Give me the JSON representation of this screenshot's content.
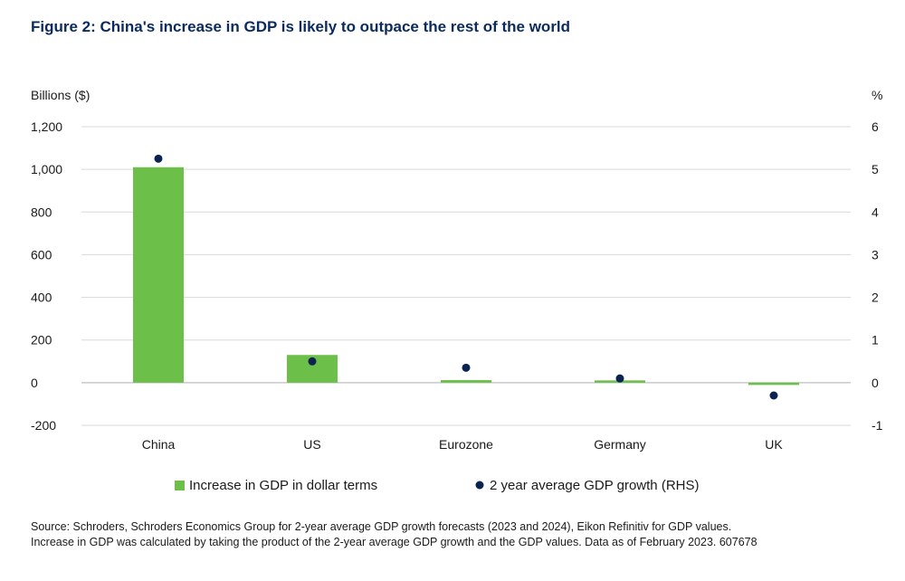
{
  "title": "Figure 2: China's increase in GDP is likely to outpace the rest of the world",
  "source": {
    "line1": "Source: Schroders, Schroders Economics Group for 2-year average GDP growth forecasts (2023 and 2024), Eikon Refinitiv for GDP values.",
    "line2": "Increase in GDP was calculated by taking the product of the 2-year average GDP growth and the GDP values. Data as of February 2023. 607678"
  },
  "colors": {
    "bar": "#6cc04a",
    "dot": "#0b2350",
    "grid": "#d9d9d9",
    "zero": "#bfbfbf"
  },
  "chart_data": {
    "type": "bar",
    "categories": [
      "China",
      "US",
      "Eurozone",
      "Germany",
      "UK"
    ],
    "series": [
      {
        "name": "Increase in GDP in dollar terms",
        "type": "bar",
        "axis": "left",
        "values": [
          1010,
          130,
          12,
          3,
          -10
        ]
      },
      {
        "name": "2 year average GDP growth (RHS)",
        "type": "scatter",
        "axis": "right",
        "values": [
          5.25,
          0.5,
          0.35,
          0.1,
          -0.3
        ]
      }
    ],
    "ylabel_left": "Billions ($)",
    "ylabel_right": "%",
    "ylim_left": [
      -200,
      1200
    ],
    "ylim_right": [
      -1,
      6
    ],
    "yticks_left": [
      "1,200",
      "1,000",
      "800",
      "600",
      "400",
      "200",
      "0",
      "-200"
    ],
    "yticks_right": [
      "6",
      "5",
      "4",
      "3",
      "2",
      "1",
      "0",
      "-1"
    ],
    "grid": true,
    "legend_position": "bottom"
  }
}
